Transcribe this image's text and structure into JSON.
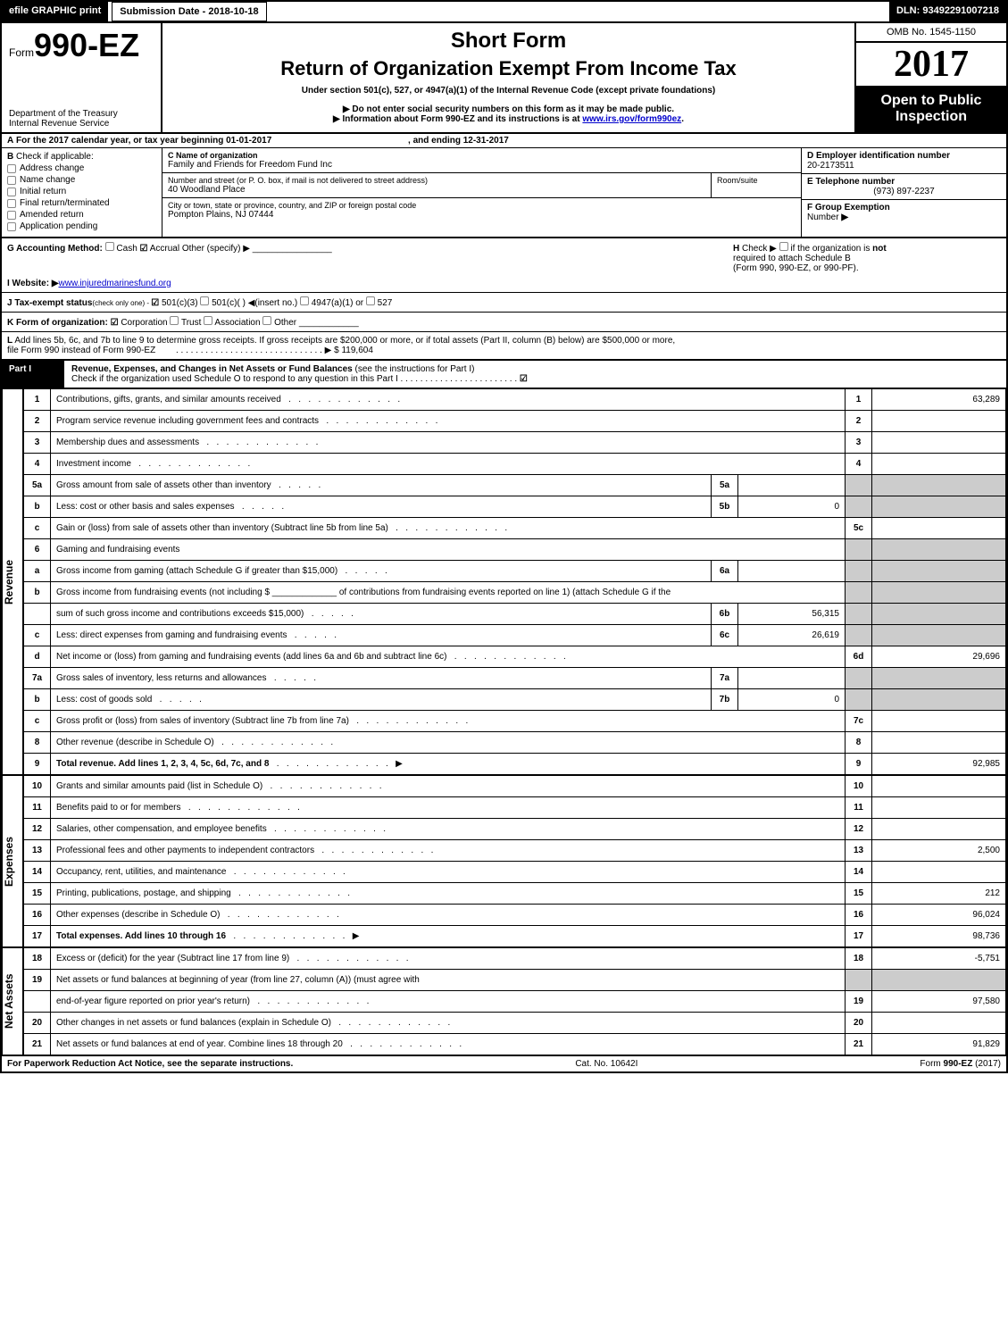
{
  "top": {
    "efile": "efile GRAPHIC print",
    "sub_date_label": "Submission Date - ",
    "sub_date": "2018-10-18",
    "dln_label": "DLN: ",
    "dln": "93492291007218"
  },
  "header": {
    "form_prefix": "Form",
    "form_num": "990-EZ",
    "short_form": "Short Form",
    "title": "Return of Organization Exempt From Income Tax",
    "under": "Under section 501(c), 527, or 4947(a)(1) of the Internal Revenue Code (except private foundations)",
    "notice1": "▶ Do not enter social security numbers on this form as it may be made public.",
    "notice2_pre": "▶ Information about Form 990-EZ and its instructions is at ",
    "notice2_link": "www.irs.gov/form990ez",
    "notice2_post": ".",
    "dept1": "Department of the Treasury",
    "dept2": "Internal Revenue Service",
    "omb": "OMB No. 1545-1150",
    "year": "2017",
    "open1": "Open to Public",
    "open2": "Inspection"
  },
  "line_a": {
    "label_a": "A",
    "text": "For the 2017 calendar year, or tax year beginning ",
    "begin": "01-01-2017",
    "mid": ", and ending ",
    "end": "12-31-2017"
  },
  "section_b": {
    "label": "B",
    "check_label": "Check if applicable:",
    "opts": [
      "Address change",
      "Name change",
      "Initial return",
      "Final return/terminated",
      "Amended return",
      "Application pending"
    ]
  },
  "section_c": {
    "name_label": "C Name of organization",
    "name": "Family and Friends for Freedom Fund Inc",
    "street_label": "Number and street (or P. O. box, if mail is not delivered to street address)",
    "street": "40 Woodland Place",
    "room_label": "Room/suite",
    "city_label": "City or town, state or province, country, and ZIP or foreign postal code",
    "city": "Pompton Plains, NJ  07444"
  },
  "section_d": {
    "d_label": "D Employer identification number",
    "ein": "20-2173511",
    "e_label": "E Telephone number",
    "phone": "(973) 897-2237",
    "f_label": "F Group Exemption",
    "f_label2": "Number",
    "f_arrow": "▶"
  },
  "line_g": {
    "label": "G Accounting Method:",
    "cash": "Cash",
    "accrual": "Accrual",
    "other": "Other (specify) ▶"
  },
  "line_h": {
    "label": "H",
    "text1": "Check ▶",
    "text2": "if the organization is",
    "not": "not",
    "text3": "required to attach Schedule B",
    "text4": "(Form 990, 990-EZ, or 990-PF)."
  },
  "line_i": {
    "label": "I Website: ▶",
    "url": "www.injuredmarinesfund.org"
  },
  "line_j": {
    "label": "J Tax-exempt status",
    "sub": "(check only one) - ",
    "o1": "501(c)(3)",
    "o2": "501(c)(  )",
    "o2b": "◀(insert no.)",
    "o3": "4947(a)(1) or",
    "o4": "527"
  },
  "line_k": {
    "label": "K Form of organization:",
    "o1": "Corporation",
    "o2": "Trust",
    "o3": "Association",
    "o4": "Other"
  },
  "line_l": {
    "label": "L",
    "text": "Add lines 5b, 6c, and 7b to line 9 to determine gross receipts. If gross receipts are $200,000 or more, or if total assets (Part II, column (B) below) are $500,000 or more,",
    "text2": "file Form 990 instead of Form 990-EZ",
    "amount": "▶ $ 119,604"
  },
  "part1": {
    "label": "Part I",
    "title": "Revenue, Expenses, and Changes in Net Assets or Fund Balances",
    "sub": " (see the instructions for Part I)",
    "check_line": "Check if the organization used Schedule O to respond to any question in this Part I"
  },
  "sections": {
    "revenue": "Revenue",
    "expenses": "Expenses",
    "netassets": "Net Assets"
  },
  "rows": [
    {
      "ln": "1",
      "desc": "Contributions, gifts, grants, and similar amounts received",
      "num": "1",
      "amt": "63,289"
    },
    {
      "ln": "2",
      "desc": "Program service revenue including government fees and contracts",
      "num": "2",
      "amt": ""
    },
    {
      "ln": "3",
      "desc": "Membership dues and assessments",
      "num": "3",
      "amt": ""
    },
    {
      "ln": "4",
      "desc": "Investment income",
      "num": "4",
      "amt": ""
    },
    {
      "ln": "5a",
      "desc": "Gross amount from sale of assets other than inventory",
      "sub": "5a",
      "subval": ""
    },
    {
      "ln": "b",
      "desc": "Less: cost or other basis and sales expenses",
      "sub": "5b",
      "subval": "0"
    },
    {
      "ln": "c",
      "desc": "Gain or (loss) from sale of assets other than inventory (Subtract line 5b from line 5a)",
      "num": "5c",
      "amt": ""
    },
    {
      "ln": "6",
      "desc": "Gaming and fundraising events"
    },
    {
      "ln": "a",
      "desc": "Gross income from gaming (attach Schedule G if greater than $15,000)",
      "sub": "6a",
      "subval": ""
    },
    {
      "ln": "b",
      "desc": "Gross income from fundraising events (not including $ _____________ of contributions from fundraising events reported on line 1) (attach Schedule G if the"
    },
    {
      "ln": "",
      "desc": "sum of such gross income and contributions exceeds $15,000)",
      "sub": "6b",
      "subval": "56,315"
    },
    {
      "ln": "c",
      "desc": "Less: direct expenses from gaming and fundraising events",
      "sub": "6c",
      "subval": "26,619"
    },
    {
      "ln": "d",
      "desc": "Net income or (loss) from gaming and fundraising events (add lines 6a and 6b and subtract line 6c)",
      "num": "6d",
      "amt": "29,696"
    },
    {
      "ln": "7a",
      "desc": "Gross sales of inventory, less returns and allowances",
      "sub": "7a",
      "subval": ""
    },
    {
      "ln": "b",
      "desc": "Less: cost of goods sold",
      "sub": "7b",
      "subval": "0"
    },
    {
      "ln": "c",
      "desc": "Gross profit or (loss) from sales of inventory (Subtract line 7b from line 7a)",
      "num": "7c",
      "amt": ""
    },
    {
      "ln": "8",
      "desc": "Other revenue (describe in Schedule O)",
      "num": "8",
      "amt": ""
    },
    {
      "ln": "9",
      "desc": "Total revenue. Add lines 1, 2, 3, 4, 5c, 6d, 7c, and 8",
      "num": "9",
      "amt": "92,985",
      "arrow": true,
      "bold": true
    }
  ],
  "exp_rows": [
    {
      "ln": "10",
      "desc": "Grants and similar amounts paid (list in Schedule O)",
      "num": "10",
      "amt": ""
    },
    {
      "ln": "11",
      "desc": "Benefits paid to or for members",
      "num": "11",
      "amt": ""
    },
    {
      "ln": "12",
      "desc": "Salaries, other compensation, and employee benefits",
      "num": "12",
      "amt": ""
    },
    {
      "ln": "13",
      "desc": "Professional fees and other payments to independent contractors",
      "num": "13",
      "amt": "2,500"
    },
    {
      "ln": "14",
      "desc": "Occupancy, rent, utilities, and maintenance",
      "num": "14",
      "amt": ""
    },
    {
      "ln": "15",
      "desc": "Printing, publications, postage, and shipping",
      "num": "15",
      "amt": "212"
    },
    {
      "ln": "16",
      "desc": "Other expenses (describe in Schedule O)",
      "num": "16",
      "amt": "96,024"
    },
    {
      "ln": "17",
      "desc": "Total expenses. Add lines 10 through 16",
      "num": "17",
      "amt": "98,736",
      "arrow": true,
      "bold": true
    }
  ],
  "na_rows": [
    {
      "ln": "18",
      "desc": "Excess or (deficit) for the year (Subtract line 17 from line 9)",
      "num": "18",
      "amt": "-5,751"
    },
    {
      "ln": "19",
      "desc": "Net assets or fund balances at beginning of year (from line 27, column (A)) (must agree with"
    },
    {
      "ln": "",
      "desc": "end-of-year figure reported on prior year's return)",
      "num": "19",
      "amt": "97,580"
    },
    {
      "ln": "20",
      "desc": "Other changes in net assets or fund balances (explain in Schedule O)",
      "num": "20",
      "amt": ""
    },
    {
      "ln": "21",
      "desc": "Net assets or fund balances at end of year. Combine lines 18 through 20",
      "num": "21",
      "amt": "91,829"
    }
  ],
  "footer": {
    "left": "For Paperwork Reduction Act Notice, see the separate instructions.",
    "mid": "Cat. No. 10642I",
    "right_pre": "Form ",
    "right_bold": "990-EZ",
    "right_post": " (2017)"
  }
}
